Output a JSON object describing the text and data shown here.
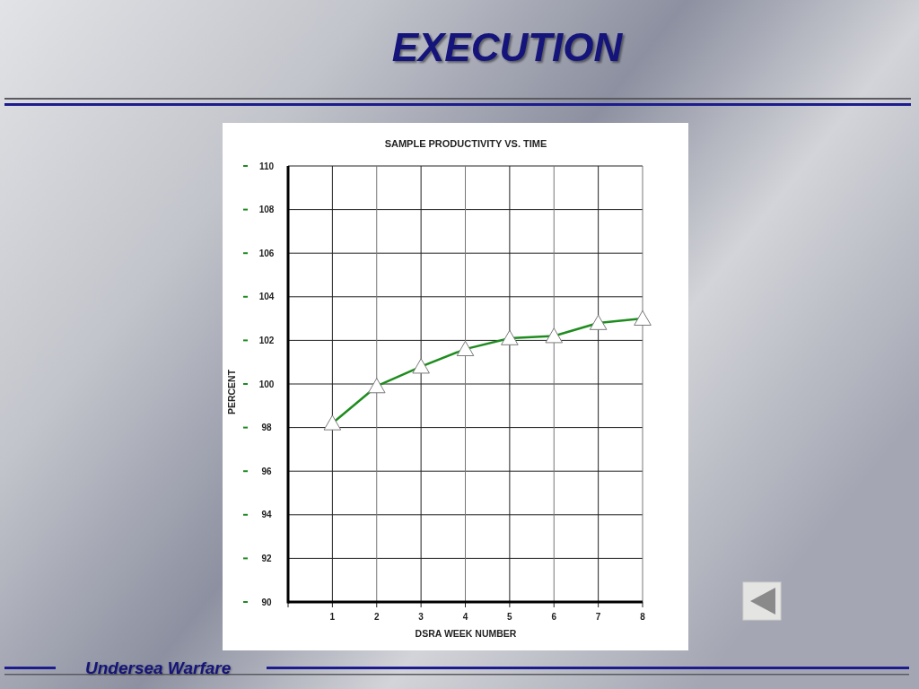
{
  "chart_data": {
    "type": "line",
    "title": "EXECUTION",
    "subtitle": "SAMPLE PRODUCTIVITY VS. TIME",
    "xlabel": "DSRA WEEK NUMBER",
    "ylabel": "PERCENT",
    "annotations": [
      "Undersea Warfare"
    ],
    "x": [
      1,
      2,
      3,
      4,
      5,
      6,
      7,
      8
    ],
    "series": [
      {
        "color": "#1e8c1e",
        "values": [
          98.2,
          99.9,
          100.8,
          101.6,
          102.1,
          102.2,
          102.8,
          103.0
        ]
      }
    ],
    "xlim": [
      0,
      8
    ],
    "ylim": [
      90,
      110
    ],
    "xticks": [
      {
        "value": 0,
        "label": null
      },
      1,
      2,
      3,
      4,
      5,
      6,
      7,
      8
    ],
    "yticks": [
      90,
      92,
      94,
      96,
      98,
      100,
      102,
      104,
      106,
      108,
      110
    ],
    "grid": true,
    "marker": "triangle",
    "line_style": "solid"
  }
}
